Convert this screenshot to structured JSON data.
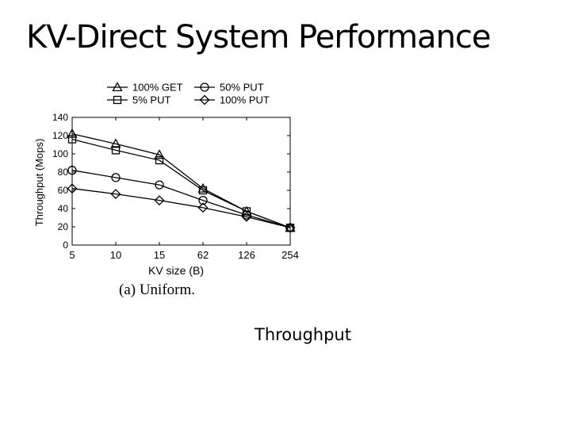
{
  "slide": {
    "title": "KV-Direct System Performance",
    "caption": "(a) Uniform.",
    "footer_label": "Throughput"
  },
  "chart_data": {
    "type": "line",
    "categories": [
      "5",
      "10",
      "15",
      "62",
      "126",
      "254"
    ],
    "xlabel": "KV size (B)",
    "ylabel": "Throughput (Mops)",
    "ylim": [
      0,
      140
    ],
    "yticks": [
      0,
      20,
      40,
      60,
      80,
      100,
      120,
      140
    ],
    "legend_position": "top",
    "grid": false,
    "series": [
      {
        "name": "100% GET",
        "marker": "triangle",
        "values": [
          122,
          111,
          99,
          62,
          37,
          19
        ]
      },
      {
        "name": "50% PUT",
        "marker": "circle",
        "values": [
          82,
          74,
          66,
          49,
          33,
          19
        ]
      },
      {
        "name": "5% PUT",
        "marker": "square",
        "values": [
          116,
          104,
          93,
          60,
          37,
          19
        ]
      },
      {
        "name": "100% PUT",
        "marker": "diamond",
        "values": [
          62,
          56,
          49,
          41,
          31,
          19
        ]
      }
    ]
  }
}
